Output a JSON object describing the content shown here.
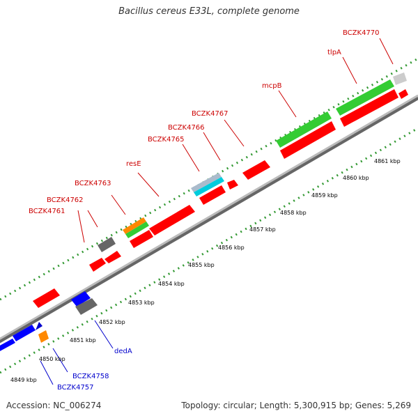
{
  "title": "Bacillus cereus E33L, complete genome",
  "footer": {
    "accession": "Accession: NC_006274",
    "topology": "Topology: circular; Length: 5,300,915 bp; Genes: 5,269"
  },
  "colors": {
    "forward_gene": "#ff0000",
    "reverse_gene": "#0000ff",
    "backbone": "#999999",
    "tick": "#339933",
    "label_forward": "#cc0000",
    "label_reverse": "#0000cc"
  },
  "scale_labels": [
    "4849 kbp",
    "4850 kbp",
    "4851 kbp",
    "4852 kbp",
    "4853 kbp",
    "4854 kbp",
    "4855 kbp",
    "4856 kbp",
    "4857 kbp",
    "4858 kbp",
    "4859 kbp",
    "4860 kbp",
    "4861 kbp"
  ],
  "gene_labels": {
    "BCZK4757": "BCZK4757",
    "BCZK4758": "BCZK4758",
    "dedA": "dedA",
    "BCZK4761": "BCZK4761",
    "BCZK4762": "BCZK4762",
    "BCZK4763": "BCZK4763",
    "resE": "resE",
    "BCZK4765": "BCZK4765",
    "BCZK4766": "BCZK4766",
    "BCZK4767": "BCZK4767",
    "mcpB": "mcpB",
    "tlpA": "tlpA",
    "BCZK4770": "BCZK4770"
  }
}
